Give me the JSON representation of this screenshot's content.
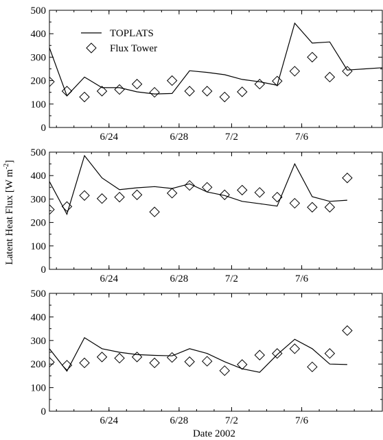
{
  "figure": {
    "xlabel": "Date 2002",
    "ylabel_main": "Latent Heat Flux [W m",
    "ylabel_sup": "-2",
    "ylabel_close": "]"
  },
  "chart_data": [
    {
      "type": "line",
      "panel": "top",
      "xlim": [
        20.6,
        39.6
      ],
      "ylim": [
        0,
        500
      ],
      "yticks": [
        0,
        100,
        200,
        300,
        400,
        500
      ],
      "xtick_values": [
        24,
        28,
        31,
        35
      ],
      "xtick_labels": [
        "6/24",
        "6/28",
        "7/2",
        "7/6"
      ],
      "legend": {
        "placement": "top-left",
        "entries": [
          "TOPLATS",
          "Flux Tower"
        ]
      },
      "grid": false,
      "series": [
        {
          "name": "TOPLATS",
          "style": "line",
          "x": [
            20.6,
            21.6,
            22.6,
            23.6,
            24.6,
            25.6,
            26.6,
            27.6,
            28.6,
            29.6,
            30.6,
            31.6,
            32.6,
            33.6,
            34.6,
            35.6,
            36.6,
            37.6,
            38.6,
            39.6
          ],
          "y": [
            340,
            135,
            215,
            170,
            170,
            152,
            143,
            145,
            242,
            235,
            225,
            205,
            195,
            180,
            445,
            360,
            365,
            245,
            250,
            255
          ]
        },
        {
          "name": "Flux Tower",
          "style": "diamond",
          "x": [
            20.6,
            21.6,
            22.6,
            23.6,
            24.6,
            25.6,
            26.6,
            27.6,
            28.6,
            29.6,
            30.6,
            31.6,
            32.6,
            33.6,
            34.6,
            35.6,
            36.6,
            37.6
          ],
          "y": [
            195,
            155,
            130,
            155,
            162,
            185,
            150,
            200,
            155,
            155,
            130,
            152,
            185,
            198,
            240,
            300,
            215,
            240
          ]
        }
      ]
    },
    {
      "type": "line",
      "panel": "middle",
      "xlim": [
        20.6,
        39.6
      ],
      "ylim": [
        0,
        500
      ],
      "yticks": [
        0,
        100,
        200,
        300,
        400,
        500
      ],
      "xtick_values": [
        24,
        28,
        31,
        35
      ],
      "xtick_labels": [
        "6/24",
        "6/28",
        "7/2",
        "7/6"
      ],
      "grid": false,
      "series": [
        {
          "style": "line",
          "x": [
            20.6,
            21.6,
            22.6,
            23.6,
            24.6,
            25.6,
            26.6,
            27.6,
            28.6,
            29.6,
            30.6,
            31.6,
            32.6,
            33.6,
            34.6,
            35.6,
            36.6,
            37.6
          ],
          "y": [
            375,
            235,
            485,
            390,
            340,
            348,
            353,
            345,
            365,
            330,
            315,
            290,
            280,
            270,
            450,
            310,
            290,
            295
          ]
        },
        {
          "style": "diamond",
          "x": [
            20.6,
            21.6,
            22.6,
            23.6,
            24.6,
            25.6,
            26.6,
            27.6,
            28.6,
            29.6,
            30.6,
            31.6,
            32.6,
            33.6,
            34.6,
            35.6,
            36.6,
            37.6
          ],
          "y": [
            255,
            268,
            315,
            302,
            308,
            318,
            245,
            325,
            358,
            350,
            318,
            338,
            328,
            308,
            282,
            265,
            265,
            390
          ]
        }
      ]
    },
    {
      "type": "line",
      "panel": "bottom",
      "xlim": [
        20.6,
        39.6
      ],
      "ylim": [
        0,
        500
      ],
      "yticks": [
        0,
        100,
        200,
        300,
        400,
        500
      ],
      "xtick_values": [
        24,
        28,
        31,
        35
      ],
      "xtick_labels": [
        "6/24",
        "6/28",
        "7/2",
        "7/6"
      ],
      "grid": false,
      "series": [
        {
          "style": "line",
          "x": [
            20.6,
            21.6,
            22.6,
            23.6,
            24.6,
            25.6,
            26.6,
            27.6,
            28.6,
            29.6,
            30.6,
            31.6,
            32.6,
            33.6,
            34.6,
            35.6,
            36.6,
            37.6
          ],
          "y": [
            265,
            170,
            312,
            265,
            250,
            240,
            237,
            235,
            265,
            245,
            210,
            180,
            165,
            240,
            305,
            265,
            200,
            198
          ]
        },
        {
          "style": "diamond",
          "x": [
            20.6,
            21.6,
            22.6,
            23.6,
            24.6,
            25.6,
            26.6,
            27.6,
            28.6,
            29.6,
            30.6,
            31.6,
            32.6,
            33.6,
            34.6,
            35.6,
            36.6,
            37.6
          ],
          "y": [
            208,
            195,
            205,
            230,
            225,
            230,
            205,
            228,
            210,
            212,
            172,
            198,
            238,
            245,
            265,
            188,
            245,
            342
          ]
        }
      ]
    }
  ]
}
